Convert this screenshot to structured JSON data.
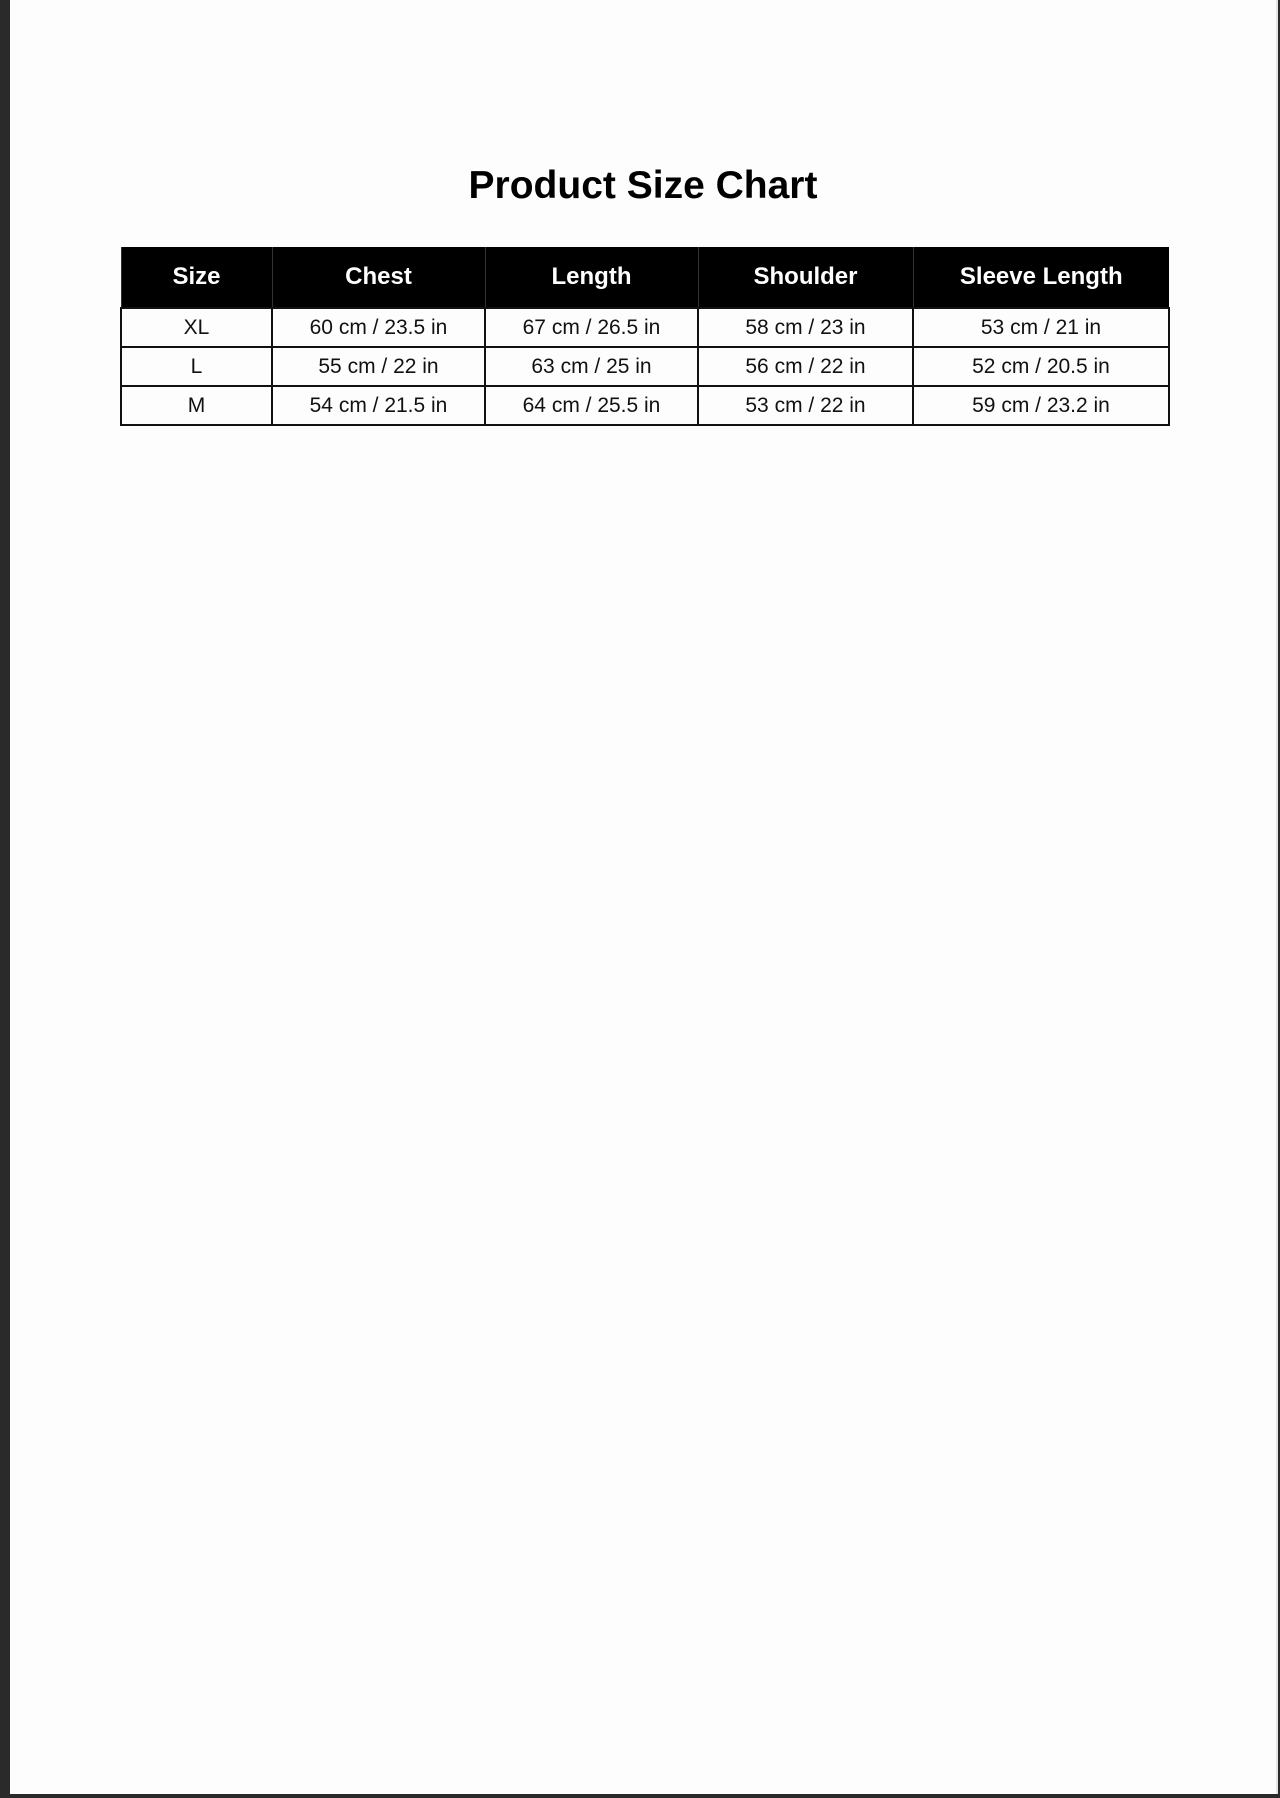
{
  "title": "Product Size Chart",
  "table": {
    "headers": [
      "Size",
      "Chest",
      "Length",
      "Shoulder",
      "Sleeve Length"
    ],
    "rows": [
      [
        "XL",
        "60 cm / 23.5 in",
        "67 cm / 26.5 in",
        "58 cm / 23 in",
        "53 cm / 21 in"
      ],
      [
        "L",
        "55 cm / 22 in",
        "63 cm / 25 in",
        "56 cm / 22 in",
        "52 cm / 20.5 in"
      ],
      [
        "M",
        "54 cm / 21.5 in",
        "64 cm / 25.5 in",
        "53 cm / 22 in",
        "59 cm / 23.2 in"
      ]
    ]
  }
}
